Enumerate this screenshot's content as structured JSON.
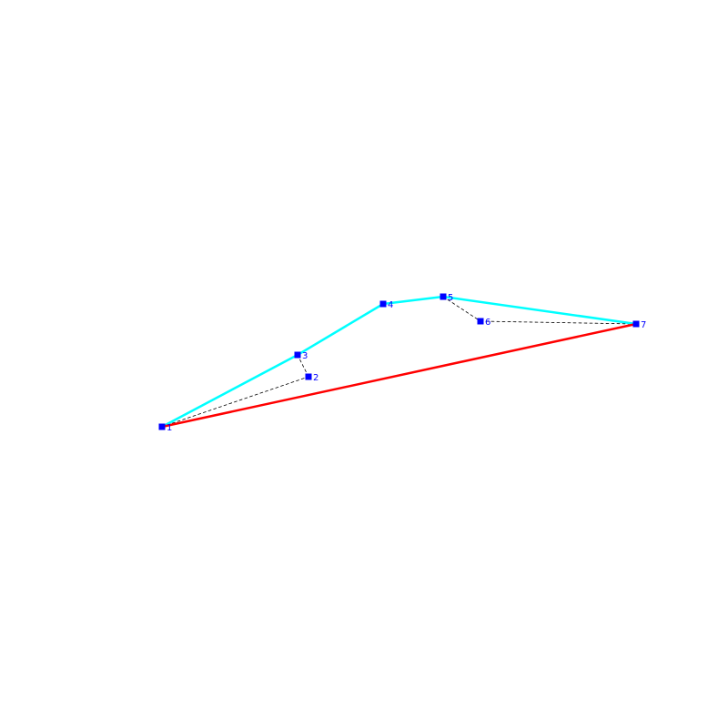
{
  "colors": {
    "background": "#ffffff",
    "point_fill": "#0000ff",
    "label_color": "#0000ff",
    "polygon_edges": "#000000",
    "upper_hull": "#00ffff",
    "lower_hull": "#ff0000"
  },
  "points": [
    {
      "id": 1,
      "label": "1"
    },
    {
      "id": 2,
      "label": "2"
    },
    {
      "id": 3,
      "label": "3"
    },
    {
      "id": 4,
      "label": "4"
    },
    {
      "id": 5,
      "label": "5"
    },
    {
      "id": 6,
      "label": "6"
    },
    {
      "id": 7,
      "label": "7"
    }
  ],
  "polygon_order": [
    1,
    2,
    3,
    4,
    5,
    6,
    7,
    1
  ],
  "upper_hull": [
    1,
    3,
    4,
    5,
    7
  ],
  "lower_hull": [
    1,
    7
  ]
}
